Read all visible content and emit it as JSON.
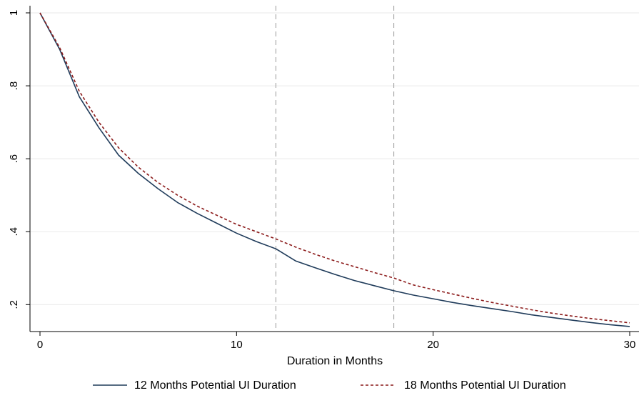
{
  "chart_data": {
    "type": "line",
    "title": "",
    "xlabel": "Duration in Months",
    "ylabel": "",
    "xlim": [
      0,
      30
    ],
    "ylim": [
      0.134,
      1.0
    ],
    "x_ticks": [
      0,
      10,
      20,
      30
    ],
    "x_tick_labels": [
      "0",
      "10",
      "20",
      "30"
    ],
    "y_ticks": [
      0.2,
      0.4,
      0.6,
      0.8,
      1.0
    ],
    "y_tick_labels": [
      ".2",
      ".4",
      ".6",
      ".8",
      "1"
    ],
    "grid": "horizontal",
    "reference_lines_x": [
      12,
      18
    ],
    "legend_position": "bottom",
    "x": [
      0,
      1,
      2,
      3,
      4,
      5,
      6,
      7,
      8,
      9,
      10,
      11,
      12,
      13,
      14,
      15,
      16,
      17,
      18,
      19,
      20,
      21,
      22,
      23,
      24,
      25,
      26,
      27,
      28,
      29,
      30
    ],
    "series": [
      {
        "name": "12 Months Potential UI Duration",
        "color": "#1f3b5a",
        "style": "solid",
        "values": [
          1.0,
          0.9,
          0.77,
          0.685,
          0.61,
          0.56,
          0.518,
          0.48,
          0.45,
          0.423,
          0.396,
          0.373,
          0.353,
          0.32,
          0.301,
          0.283,
          0.266,
          0.252,
          0.238,
          0.226,
          0.216,
          0.206,
          0.197,
          0.189,
          0.181,
          0.172,
          0.165,
          0.158,
          0.151,
          0.145,
          0.14
        ]
      },
      {
        "name": "18 Months Potential UI Duration",
        "color": "#8b1a1a",
        "style": "dashed",
        "values": [
          1.0,
          0.905,
          0.785,
          0.7,
          0.63,
          0.577,
          0.535,
          0.5,
          0.47,
          0.445,
          0.42,
          0.4,
          0.38,
          0.358,
          0.338,
          0.32,
          0.304,
          0.288,
          0.273,
          0.254,
          0.241,
          0.229,
          0.217,
          0.206,
          0.196,
          0.186,
          0.177,
          0.169,
          0.162,
          0.156,
          0.15
        ]
      }
    ]
  }
}
